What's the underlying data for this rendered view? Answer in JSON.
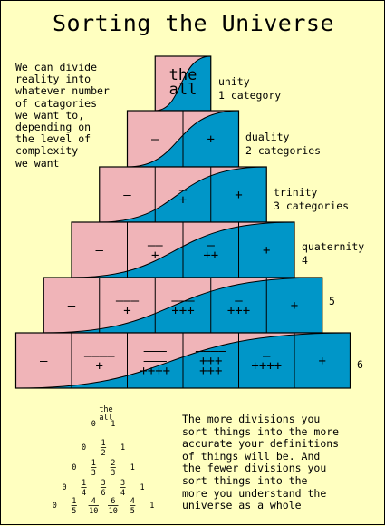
{
  "title": "Sorting the Universe",
  "intro_text": "We can divide\nreality into\nwhatever number\nof catagories\nwe want to,\ndepending on\nthe level of\ncomplexity\nwe want",
  "outro_text": "The more divisions you\nsort things into the more\naccurate your definitions\nof things will be. And\nthe fewer divisions you\nsort things into the\nmore you understand the\nuniverse as a whole",
  "colors": {
    "background": "#ffffc0",
    "negative": "#f0b4b8",
    "positive": "#0096c8",
    "line": "#000000"
  },
  "rows": [
    {
      "label": "unity\n1 category",
      "cells": [
        "the\nall"
      ]
    },
    {
      "label": "duality\n2 categories",
      "cells": [
        "–",
        "+"
      ]
    },
    {
      "label": "trinity\n3 categories",
      "cells": [
        "–",
        "–\n+",
        "+"
      ]
    },
    {
      "label": "quaternity\n4",
      "cells": [
        "–",
        "––\n+",
        "–\n++",
        "+"
      ]
    },
    {
      "label": "5",
      "cells": [
        "–",
        "–––\n+",
        "–––\n+++",
        "–\n+++",
        "+"
      ]
    },
    {
      "label": "6",
      "cells": [
        "–",
        "––––\n+",
        "–––\n–––\n++++",
        "––––\n+++\n+++",
        "–\n++++",
        "+"
      ]
    }
  ],
  "fraction_triangle": {
    "top": "the\nall",
    "rows": [
      [
        "0",
        "1"
      ],
      [
        "0",
        "1/2",
        "1"
      ],
      [
        "0",
        "1/3",
        "2/3",
        "1"
      ],
      [
        "0",
        "1/4",
        "3/6",
        "3/4",
        "1"
      ],
      [
        "0",
        "1/5",
        "4/10",
        "6/10",
        "4/5",
        "1"
      ]
    ]
  }
}
